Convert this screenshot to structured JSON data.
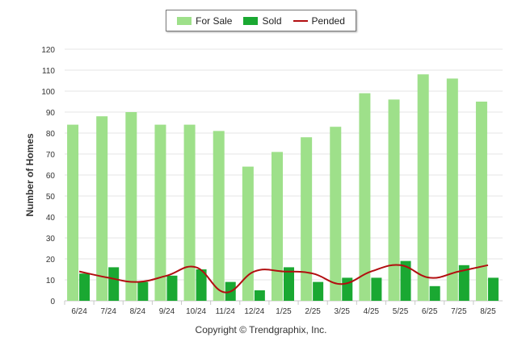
{
  "chart_data": {
    "type": "bar",
    "title": "",
    "xlabel": "",
    "ylabel": "Number of Homes",
    "ylim": [
      0,
      120
    ],
    "yticks": [
      0,
      10,
      20,
      30,
      40,
      50,
      60,
      70,
      80,
      90,
      100,
      110,
      120
    ],
    "grid": true,
    "legend_position": "top-center",
    "categories": [
      "6/24",
      "7/24",
      "8/24",
      "9/24",
      "10/24",
      "11/24",
      "12/24",
      "1/25",
      "2/25",
      "3/25",
      "4/25",
      "5/25",
      "6/25",
      "7/25",
      "8/25"
    ],
    "series": [
      {
        "name": "For Sale",
        "type": "bar",
        "color": "#9ee08a",
        "values": [
          84,
          88,
          90,
          84,
          84,
          81,
          64,
          71,
          78,
          83,
          99,
          96,
          108,
          106,
          95
        ]
      },
      {
        "name": "Sold",
        "type": "bar",
        "color": "#1aa832",
        "values": [
          13,
          16,
          9,
          12,
          15,
          9,
          5,
          16,
          9,
          11,
          11,
          19,
          7,
          17,
          11
        ]
      },
      {
        "name": "Pended",
        "type": "line",
        "color": "#b20e10",
        "values": [
          14,
          11,
          9,
          12,
          16,
          4,
          14,
          14,
          13,
          8,
          14,
          17,
          11,
          14,
          17
        ]
      }
    ]
  },
  "footer": {
    "copyright": "Copyright © Trendgraphix, Inc."
  }
}
